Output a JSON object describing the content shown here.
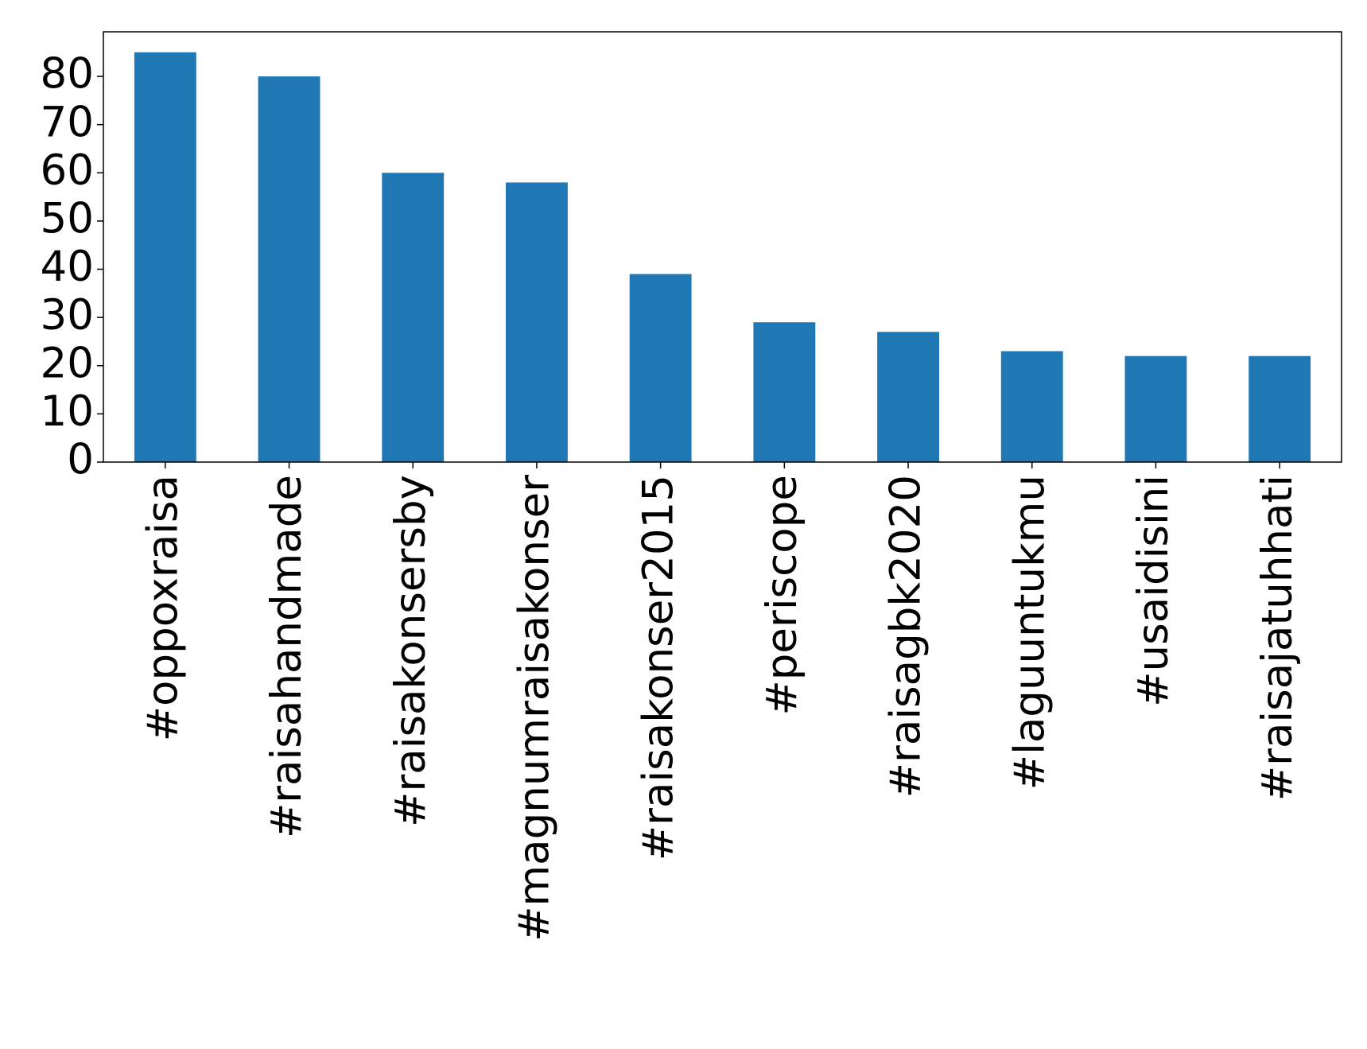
{
  "chart_data": {
    "type": "bar",
    "categories": [
      "#oppoxraisa",
      "#raisahandmade",
      "#raisakonsersby",
      "#magnumraisakonser",
      "#raisakonser2015",
      "#periscope",
      "#raisagbk2020",
      "#laguuntukmu",
      "#usaidisini",
      "#raisajatuhhati"
    ],
    "values": [
      85,
      80,
      60,
      58,
      39,
      29,
      27,
      23,
      22,
      22
    ],
    "color": "#1f77b4",
    "ylim": [
      0,
      89.25
    ],
    "yticks": [
      0,
      10,
      20,
      30,
      40,
      50,
      60,
      70,
      80
    ],
    "grid": false
  }
}
